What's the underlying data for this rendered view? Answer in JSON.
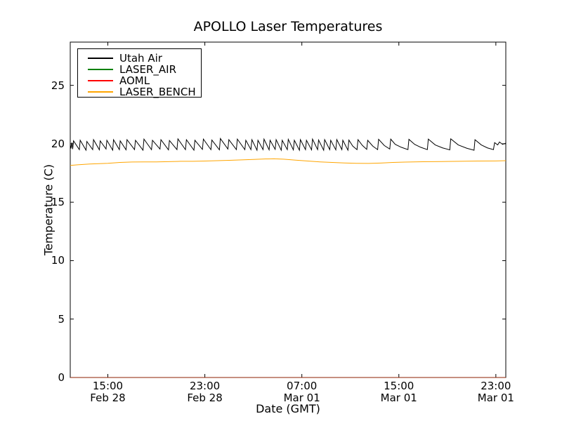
{
  "window": {
    "background": "#ffffff"
  },
  "chart_data": {
    "type": "line",
    "title": "APOLLO Laser Temperatures",
    "xlabel": "Date (GMT)",
    "ylabel": "Temperature (C)",
    "x_unit": "hours since Feb 28 00:00 GMT",
    "xlim": [
      11.9,
      47.82
    ],
    "ylim": [
      0,
      28.7
    ],
    "grid": false,
    "legend_position": "upper left",
    "x_ticks": [
      {
        "value": 15,
        "time": "15:00",
        "date": "Feb 28"
      },
      {
        "value": 23,
        "time": "23:00",
        "date": "Feb 28"
      },
      {
        "value": 31,
        "time": "07:00",
        "date": "Mar 01"
      },
      {
        "value": 39,
        "time": "15:00",
        "date": "Mar 01"
      },
      {
        "value": 47,
        "time": "23:00",
        "date": "Mar 01"
      }
    ],
    "y_ticks": [
      {
        "value": 0,
        "label": "0"
      },
      {
        "value": 5,
        "label": "5"
      },
      {
        "value": 10,
        "label": "10"
      },
      {
        "value": 15,
        "label": "15"
      },
      {
        "value": 20,
        "label": "20"
      },
      {
        "value": 25,
        "label": "25"
      }
    ],
    "series": [
      {
        "name": "Utah Air",
        "color": "#000000",
        "opacity": 1,
        "points": [
          [
            11.9,
            19.95
          ],
          [
            11.96,
            19.6
          ],
          [
            12.03,
            20.1
          ],
          [
            12.1,
            19.55
          ],
          [
            12.17,
            20.25
          ],
          [
            12.65,
            19.5
          ],
          [
            12.72,
            20.3
          ],
          [
            13.2,
            19.45
          ],
          [
            13.27,
            20.2
          ],
          [
            13.75,
            19.5
          ],
          [
            13.82,
            20.35
          ],
          [
            14.3,
            19.48
          ],
          [
            14.37,
            20.25
          ],
          [
            14.85,
            19.55
          ],
          [
            14.92,
            20.3
          ],
          [
            15.4,
            19.45
          ],
          [
            15.47,
            20.35
          ],
          [
            15.95,
            19.5
          ],
          [
            16.02,
            20.25
          ],
          [
            16.5,
            19.48
          ],
          [
            16.58,
            20.35
          ],
          [
            17.2,
            19.5
          ],
          [
            17.28,
            20.3
          ],
          [
            17.9,
            19.45
          ],
          [
            17.98,
            20.4
          ],
          [
            18.6,
            19.5
          ],
          [
            18.68,
            20.3
          ],
          [
            19.3,
            19.55
          ],
          [
            19.38,
            20.35
          ],
          [
            20.0,
            19.48
          ],
          [
            20.08,
            20.28
          ],
          [
            20.7,
            19.5
          ],
          [
            20.78,
            20.42
          ],
          [
            21.4,
            19.5
          ],
          [
            21.48,
            20.35
          ],
          [
            22.1,
            19.45
          ],
          [
            22.18,
            20.3
          ],
          [
            22.8,
            19.52
          ],
          [
            22.88,
            20.4
          ],
          [
            23.5,
            19.5
          ],
          [
            23.58,
            20.32
          ],
          [
            24.2,
            19.48
          ],
          [
            24.28,
            20.45
          ],
          [
            24.9,
            19.55
          ],
          [
            24.98,
            20.35
          ],
          [
            25.6,
            19.5
          ],
          [
            25.68,
            20.4
          ],
          [
            26.3,
            19.5
          ],
          [
            26.38,
            20.3
          ],
          [
            26.8,
            19.5
          ],
          [
            26.88,
            20.35
          ],
          [
            27.3,
            19.45
          ],
          [
            27.38,
            20.3
          ],
          [
            27.8,
            19.5
          ],
          [
            27.88,
            20.4
          ],
          [
            28.3,
            19.48
          ],
          [
            28.38,
            20.3
          ],
          [
            28.8,
            19.52
          ],
          [
            28.88,
            20.35
          ],
          [
            29.3,
            19.45
          ],
          [
            29.38,
            20.3
          ],
          [
            29.8,
            19.5
          ],
          [
            29.88,
            20.38
          ],
          [
            30.3,
            19.48
          ],
          [
            30.38,
            20.3
          ],
          [
            30.8,
            19.45
          ],
          [
            30.88,
            20.35
          ],
          [
            31.3,
            19.5
          ],
          [
            31.38,
            20.3
          ],
          [
            31.8,
            19.48
          ],
          [
            31.88,
            20.4
          ],
          [
            32.3,
            19.5
          ],
          [
            32.38,
            20.32
          ],
          [
            32.8,
            19.45
          ],
          [
            32.88,
            20.35
          ],
          [
            33.3,
            19.5
          ],
          [
            33.38,
            20.3
          ],
          [
            33.8,
            19.48
          ],
          [
            33.88,
            20.36
          ],
          [
            34.3,
            19.5
          ],
          [
            34.38,
            20.3
          ],
          [
            34.8,
            19.45
          ],
          [
            34.88,
            20.32
          ],
          [
            35.2,
            19.8
          ],
          [
            35.55,
            19.5
          ],
          [
            35.63,
            20.35
          ],
          [
            36.0,
            19.85
          ],
          [
            36.35,
            19.52
          ],
          [
            36.43,
            20.3
          ],
          [
            36.85,
            19.8
          ],
          [
            37.25,
            19.5
          ],
          [
            37.33,
            20.38
          ],
          [
            37.8,
            19.85
          ],
          [
            38.25,
            19.55
          ],
          [
            38.33,
            20.4
          ],
          [
            38.7,
            19.95
          ],
          [
            39.2,
            19.7
          ],
          [
            39.75,
            19.5
          ],
          [
            39.83,
            20.38
          ],
          [
            40.3,
            19.95
          ],
          [
            40.8,
            19.7
          ],
          [
            41.35,
            19.5
          ],
          [
            41.43,
            20.4
          ],
          [
            42.0,
            19.9
          ],
          [
            42.6,
            19.65
          ],
          [
            43.2,
            19.48
          ],
          [
            43.28,
            20.42
          ],
          [
            43.9,
            19.9
          ],
          [
            44.6,
            19.62
          ],
          [
            45.2,
            19.45
          ],
          [
            45.28,
            20.35
          ],
          [
            45.8,
            19.9
          ],
          [
            46.3,
            19.65
          ],
          [
            46.8,
            19.5
          ],
          [
            46.9,
            20.1
          ],
          [
            47.15,
            19.9
          ],
          [
            47.3,
            20.15
          ],
          [
            47.55,
            19.95
          ],
          [
            47.82,
            20.05
          ]
        ]
      },
      {
        "name": "LASER_AIR",
        "color": "#008000",
        "opacity": 0.55,
        "points": [
          [
            11.9,
            0
          ],
          [
            47.82,
            0
          ]
        ]
      },
      {
        "name": "AOML",
        "color": "#ff0000",
        "opacity": 0.55,
        "points": [
          [
            11.9,
            0
          ],
          [
            47.82,
            0
          ]
        ]
      },
      {
        "name": "LASER_BENCH",
        "color": "#ffa500",
        "opacity": 1,
        "points": [
          [
            11.9,
            18.15
          ],
          [
            12.5,
            18.2
          ],
          [
            13.5,
            18.27
          ],
          [
            15,
            18.33
          ],
          [
            16,
            18.4
          ],
          [
            17,
            18.44
          ],
          [
            18,
            18.45
          ],
          [
            19,
            18.45
          ],
          [
            20,
            18.47
          ],
          [
            21,
            18.5
          ],
          [
            22,
            18.5
          ],
          [
            23,
            18.52
          ],
          [
            24,
            18.55
          ],
          [
            25,
            18.58
          ],
          [
            26,
            18.62
          ],
          [
            27,
            18.66
          ],
          [
            28,
            18.7
          ],
          [
            28.7,
            18.72
          ],
          [
            29.5,
            18.68
          ],
          [
            30.5,
            18.6
          ],
          [
            31.5,
            18.52
          ],
          [
            32.5,
            18.45
          ],
          [
            33.5,
            18.4
          ],
          [
            34.5,
            18.36
          ],
          [
            35.5,
            18.33
          ],
          [
            36.5,
            18.32
          ],
          [
            37.5,
            18.35
          ],
          [
            38.5,
            18.4
          ],
          [
            39.5,
            18.43
          ],
          [
            41,
            18.46
          ],
          [
            42.5,
            18.48
          ],
          [
            44,
            18.5
          ],
          [
            45.5,
            18.52
          ],
          [
            47,
            18.53
          ],
          [
            47.82,
            18.55
          ]
        ]
      }
    ]
  }
}
